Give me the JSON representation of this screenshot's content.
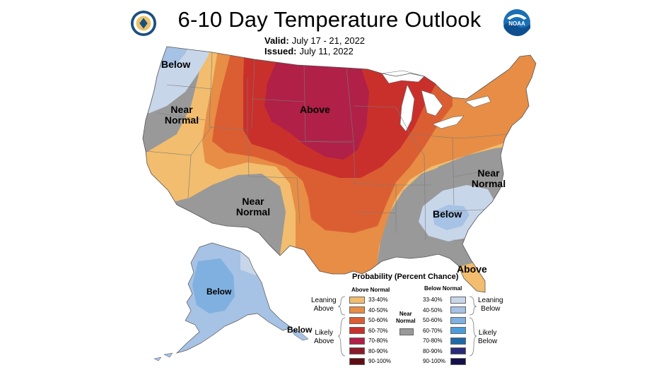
{
  "header": {
    "title": "6-10 Day Temperature Outlook",
    "valid_label": "Valid:",
    "valid_value": "July 17 - 21, 2022",
    "issued_label": "Issued:",
    "issued_value": "July 11, 2022"
  },
  "logos": {
    "left": "commerce-seal-icon",
    "right": "noaa-logo-icon"
  },
  "regions": {
    "nw_below": "Below",
    "west_near_1": "Near",
    "west_near_2": "Normal",
    "plains_above": "Above",
    "sw_near_1": "Near",
    "sw_near_2": "Normal",
    "mid_atl_near_1": "Near",
    "mid_atl_near_2": "Normal",
    "se_below": "Below",
    "fl_above": "Above",
    "ak_below": "Below",
    "ak_se_below": "Below"
  },
  "legend": {
    "title": "Probability (Percent Chance)",
    "above_header": "Above Normal",
    "below_header": "Below Normal",
    "leaning_above_1": "Leaning",
    "leaning_above_2": "Above",
    "likely_above_1": "Likely",
    "likely_above_2": "Above",
    "leaning_below_1": "Leaning",
    "leaning_below_2": "Below",
    "likely_below_1": "Likely",
    "likely_below_2": "Below",
    "near_1": "Near",
    "near_2": "Normal",
    "above": [
      {
        "label": "33-40%",
        "color": "#f2bd6e"
      },
      {
        "label": "40-50%",
        "color": "#e78d45"
      },
      {
        "label": "50-60%",
        "color": "#db5e33"
      },
      {
        "label": "60-70%",
        "color": "#c9302c"
      },
      {
        "label": "70-80%",
        "color": "#b02047"
      },
      {
        "label": "80-90%",
        "color": "#8a1b2a"
      },
      {
        "label": "90-100%",
        "color": "#5e0d14"
      }
    ],
    "below": [
      {
        "label": "33-40%",
        "color": "#c8d6ea"
      },
      {
        "label": "40-50%",
        "color": "#a6c2e4"
      },
      {
        "label": "50-60%",
        "color": "#7fb0e0"
      },
      {
        "label": "60-70%",
        "color": "#4b9cdc"
      },
      {
        "label": "70-80%",
        "color": "#1e6aa8"
      },
      {
        "label": "80-90%",
        "color": "#2a2a7a"
      },
      {
        "label": "90-100%",
        "color": "#14104a"
      }
    ],
    "near_color": "#999999"
  }
}
